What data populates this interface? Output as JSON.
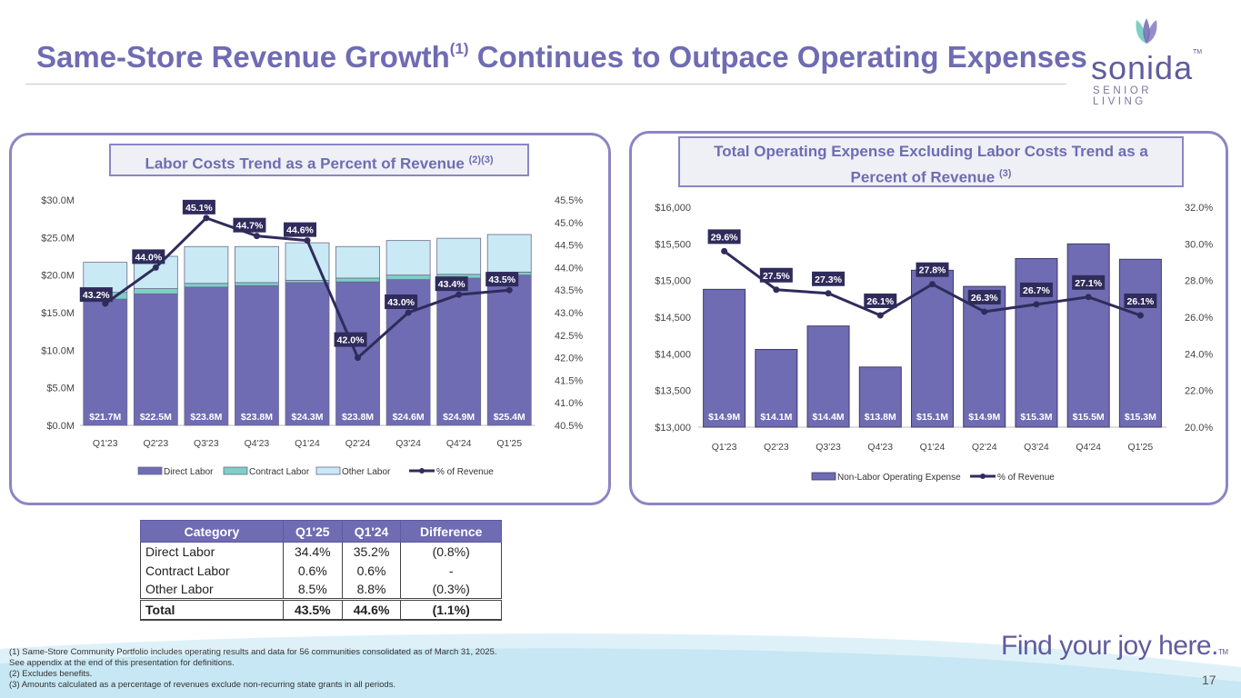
{
  "title": {
    "main": "Same-Store Revenue Growth",
    "sup": "(1)",
    "rest": " Continues to Outpace Operating Expenses"
  },
  "logo": {
    "name": "sonida",
    "tm": "TM",
    "sub": "SENIOR LIVING"
  },
  "colors": {
    "accent": "#6f6cb3",
    "bar": "#6f6cb3",
    "contract": "#7fcfc6",
    "other": "#c9e9f5",
    "line": "#2f2c5c"
  },
  "chart_data": [
    {
      "type": "bar",
      "title": "Labor Costs Trend as a Percent of Revenue",
      "title_sup": "(2)(3)",
      "categories": [
        "Q1'23",
        "Q2'23",
        "Q3'23",
        "Q4'23",
        "Q1'24",
        "Q2'24",
        "Q3'24",
        "Q4'24",
        "Q1'25"
      ],
      "series": [
        {
          "name": "Direct Labor",
          "values": [
            16.8,
            17.5,
            18.4,
            18.6,
            19.0,
            19.1,
            19.4,
            19.6,
            20.0
          ]
        },
        {
          "name": "Contract Labor",
          "values": [
            0.9,
            0.7,
            0.5,
            0.4,
            0.3,
            0.5,
            0.6,
            0.5,
            0.4
          ]
        },
        {
          "name": "Other Labor",
          "values": [
            4.0,
            4.3,
            4.9,
            4.8,
            5.0,
            4.2,
            4.6,
            4.8,
            5.0
          ]
        },
        {
          "name": "% of Revenue",
          "values": [
            43.2,
            44.0,
            45.1,
            44.7,
            44.6,
            42.0,
            43.0,
            43.4,
            43.5
          ]
        }
      ],
      "bar_labels": [
        "$21.7M",
        "$22.5M",
        "$23.8M",
        "$23.8M",
        "$24.3M",
        "$23.8M",
        "$24.6M",
        "$24.9M",
        "$25.4M"
      ],
      "pct_labels": [
        "43.2%",
        "44.0%",
        "45.1%",
        "44.7%",
        "44.6%",
        "42.0%",
        "43.0%",
        "43.4%",
        "43.5%"
      ],
      "y_ticks": [
        "$0.0M",
        "$5.0M",
        "$10.0M",
        "$15.0M",
        "$20.0M",
        "$25.0M",
        "$30.0M"
      ],
      "y2_ticks": [
        "40.5%",
        "41.0%",
        "41.5%",
        "42.0%",
        "42.5%",
        "43.0%",
        "43.5%",
        "44.0%",
        "44.5%",
        "45.0%",
        "45.5%"
      ],
      "ylim": [
        0,
        30
      ],
      "y2lim": [
        40.5,
        45.5
      ],
      "legend": [
        "Direct Labor",
        "Contract Labor",
        "Other Labor",
        "% of Revenue"
      ]
    },
    {
      "type": "bar",
      "title": "Total Operating Expense Excluding Labor Costs Trend as a",
      "title_line2": "Percent of Revenue",
      "title_sup": "(3)",
      "categories": [
        "Q1'23",
        "Q2'23",
        "Q3'23",
        "Q4'23",
        "Q1'24",
        "Q2'24",
        "Q3'24",
        "Q4'24",
        "Q1'25"
      ],
      "series": [
        {
          "name": "Non-Labor Operating Expense",
          "values": [
            14880,
            14060,
            14380,
            13820,
            15140,
            14920,
            15300,
            15500,
            15290
          ]
        },
        {
          "name": "% of Revenue",
          "values": [
            29.6,
            27.5,
            27.3,
            26.1,
            27.8,
            26.3,
            26.7,
            27.1,
            26.1
          ]
        }
      ],
      "bar_labels": [
        "$14.9M",
        "$14.1M",
        "$14.4M",
        "$13.8M",
        "$15.1M",
        "$14.9M",
        "$15.3M",
        "$15.5M",
        "$15.3M"
      ],
      "pct_labels": [
        "29.6%",
        "27.5%",
        "27.3%",
        "26.1%",
        "27.8%",
        "26.3%",
        "26.7%",
        "27.1%",
        "26.1%"
      ],
      "y_ticks": [
        "$13,000",
        "$13,500",
        "$14,000",
        "$14,500",
        "$15,000",
        "$15,500",
        "$16,000"
      ],
      "y2_ticks": [
        "20.0%",
        "22.0%",
        "24.0%",
        "26.0%",
        "28.0%",
        "30.0%",
        "32.0%"
      ],
      "ylim": [
        13000,
        16000
      ],
      "y2lim": [
        20,
        32
      ],
      "legend": [
        "Non-Labor Operating Expense",
        "% of Revenue"
      ]
    }
  ],
  "table": {
    "headers": [
      "Category",
      "Q1'25",
      "Q1'24",
      "Difference"
    ],
    "rows": [
      [
        "Direct Labor",
        "34.4%",
        "35.2%",
        "(0.8%)"
      ],
      [
        "Contract Labor",
        "0.6%",
        "0.6%",
        "-"
      ],
      [
        "Other Labor",
        "8.5%",
        "8.8%",
        "(0.3%)"
      ]
    ],
    "total": [
      "Total",
      "43.5%",
      "44.6%",
      "(1.1%)"
    ]
  },
  "footnotes": [
    "(1) Same-Store Community Portfolio includes operating results and data for 56 communities consolidated as of March 31, 2025.",
    "See appendix at the end of this presentation for definitions.",
    "(2) Excludes benefits.",
    "(3) Amounts calculated as a percentage of revenues exclude non-recurring state grants in all periods."
  ],
  "tagline": "Find your joy here.",
  "tagline_tm": "TM",
  "page_number": "17"
}
